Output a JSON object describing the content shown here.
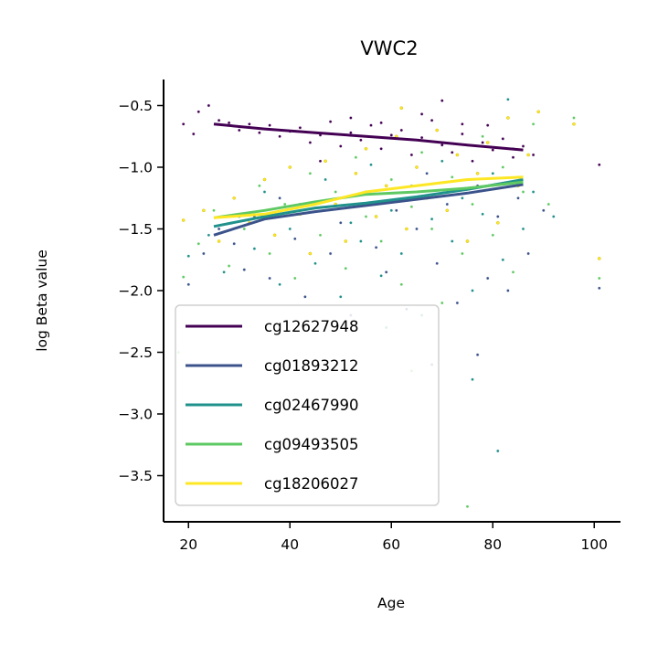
{
  "chart_data": {
    "type": "scatter",
    "title": "VWC2",
    "xlabel": "Age",
    "ylabel": "log Beta value",
    "xlim": [
      15,
      105
    ],
    "ylim": [
      -3.88,
      -0.22
    ],
    "xticks": [
      20,
      40,
      60,
      80,
      100
    ],
    "xtick_labels": [
      "20",
      "40",
      "60",
      "80",
      "100"
    ],
    "yticks": [
      -3.5,
      -3.0,
      -2.5,
      -2.0,
      -1.5,
      -1.0,
      -0.5
    ],
    "ytick_labels": [
      "−3.5",
      "−3.0",
      "−2.5",
      "−2.0",
      "−1.5",
      "−1.0",
      "−0.5"
    ],
    "grid": false,
    "legend_position": "lower-left",
    "series": [
      {
        "name": "cg12627948",
        "color": "#440154",
        "trend": {
          "x": [
            25,
            35,
            45,
            55,
            65,
            75,
            86
          ],
          "y": [
            -0.65,
            -0.69,
            -0.72,
            -0.75,
            -0.78,
            -0.82,
            -0.86
          ]
        },
        "points": [
          [
            19,
            -0.65
          ],
          [
            21,
            -0.73
          ],
          [
            22,
            -0.55
          ],
          [
            24,
            -0.5
          ],
          [
            26,
            -0.62
          ],
          [
            28,
            -0.64
          ],
          [
            30,
            -0.7
          ],
          [
            32,
            -0.65
          ],
          [
            34,
            -0.72
          ],
          [
            36,
            -0.66
          ],
          [
            38,
            -0.75
          ],
          [
            40,
            -0.71
          ],
          [
            42,
            -0.68
          ],
          [
            44,
            -0.8
          ],
          [
            46,
            -0.74
          ],
          [
            48,
            -0.63
          ],
          [
            50,
            -0.83
          ],
          [
            52,
            -0.72
          ],
          [
            54,
            -0.78
          ],
          [
            56,
            -0.66
          ],
          [
            58,
            -0.85
          ],
          [
            60,
            -0.74
          ],
          [
            62,
            -0.7
          ],
          [
            64,
            -0.9
          ],
          [
            66,
            -0.76
          ],
          [
            68,
            -0.62
          ],
          [
            70,
            -0.82
          ],
          [
            72,
            -0.88
          ],
          [
            74,
            -0.73
          ],
          [
            76,
            -0.95
          ],
          [
            78,
            -0.8
          ],
          [
            80,
            -0.86
          ],
          [
            82,
            -0.77
          ],
          [
            84,
            -0.92
          ],
          [
            86,
            -0.83
          ],
          [
            88,
            -0.9
          ],
          [
            101,
            -0.98
          ],
          [
            46,
            -0.95
          ],
          [
            52,
            -0.6
          ],
          [
            58,
            -0.64
          ],
          [
            66,
            -0.57
          ],
          [
            70,
            -0.46
          ],
          [
            74,
            -0.65
          ],
          [
            79,
            -0.66
          ]
        ]
      },
      {
        "name": "cg01893212",
        "color": "#3b528b",
        "trend": {
          "x": [
            25,
            35,
            45,
            55,
            65,
            75,
            86
          ],
          "y": [
            -1.55,
            -1.42,
            -1.36,
            -1.31,
            -1.26,
            -1.21,
            -1.14
          ]
        },
        "points": [
          [
            20,
            -1.95
          ],
          [
            23,
            -1.7
          ],
          [
            26,
            -1.5
          ],
          [
            29,
            -1.62
          ],
          [
            31,
            -1.83
          ],
          [
            33,
            -1.4
          ],
          [
            36,
            -1.9
          ],
          [
            38,
            -1.25
          ],
          [
            41,
            -1.58
          ],
          [
            43,
            -2.05
          ],
          [
            45,
            -1.3
          ],
          [
            48,
            -1.7
          ],
          [
            50,
            -1.45
          ],
          [
            52,
            -2.2
          ],
          [
            55,
            -1.2
          ],
          [
            57,
            -1.65
          ],
          [
            59,
            -1.85
          ],
          [
            61,
            -1.35
          ],
          [
            63,
            -2.15
          ],
          [
            65,
            -1.5
          ],
          [
            67,
            -1.05
          ],
          [
            69,
            -1.78
          ],
          [
            71,
            -1.3
          ],
          [
            73,
            -2.1
          ],
          [
            75,
            -1.6
          ],
          [
            77,
            -1.15
          ],
          [
            79,
            -1.9
          ],
          [
            81,
            -1.4
          ],
          [
            83,
            -2.0
          ],
          [
            85,
            -1.25
          ],
          [
            87,
            -1.7
          ],
          [
            90,
            -1.35
          ],
          [
            101,
            -1.98
          ],
          [
            68,
            -2.6
          ],
          [
            77,
            -2.52
          ]
        ]
      },
      {
        "name": "cg02467990",
        "color": "#21918c",
        "trend": {
          "x": [
            25,
            35,
            45,
            55,
            65,
            75,
            86
          ],
          "y": [
            -1.48,
            -1.4,
            -1.33,
            -1.29,
            -1.24,
            -1.18,
            -1.1
          ]
        },
        "points": [
          [
            20,
            -1.72
          ],
          [
            24,
            -1.55
          ],
          [
            27,
            -1.85
          ],
          [
            30,
            -1.4
          ],
          [
            33,
            -1.66
          ],
          [
            35,
            -1.2
          ],
          [
            38,
            -1.95
          ],
          [
            40,
            -1.5
          ],
          [
            42,
            -1.3
          ],
          [
            45,
            -1.78
          ],
          [
            47,
            -1.1
          ],
          [
            50,
            -2.05
          ],
          [
            52,
            -1.45
          ],
          [
            54,
            -1.6
          ],
          [
            56,
            -0.98
          ],
          [
            58,
            -1.88
          ],
          [
            60,
            -1.35
          ],
          [
            62,
            -1.7
          ],
          [
            64,
            -1.15
          ],
          [
            66,
            -2.2
          ],
          [
            68,
            -1.42
          ],
          [
            70,
            -0.95
          ],
          [
            72,
            -1.6
          ],
          [
            74,
            -1.25
          ],
          [
            76,
            -2.0
          ],
          [
            78,
            -1.38
          ],
          [
            80,
            -1.05
          ],
          [
            82,
            -1.75
          ],
          [
            84,
            -0.85
          ],
          [
            86,
            -1.5
          ],
          [
            88,
            -1.2
          ],
          [
            92,
            -1.4
          ],
          [
            81,
            -3.3
          ],
          [
            76,
            -2.72
          ],
          [
            83,
            -0.45
          ],
          [
            59,
            -2.3
          ]
        ]
      },
      {
        "name": "cg09493505",
        "color": "#5ec962",
        "trend": {
          "x": [
            25,
            35,
            45,
            55,
            65,
            75,
            86
          ],
          "y": [
            -1.41,
            -1.35,
            -1.28,
            -1.22,
            -1.2,
            -1.17,
            -1.12
          ]
        },
        "points": [
          [
            19,
            -1.89
          ],
          [
            22,
            -1.62
          ],
          [
            25,
            -1.35
          ],
          [
            28,
            -1.8
          ],
          [
            31,
            -1.5
          ],
          [
            34,
            -1.15
          ],
          [
            36,
            -1.7
          ],
          [
            39,
            -1.3
          ],
          [
            41,
            -1.9
          ],
          [
            44,
            -1.05
          ],
          [
            46,
            -1.55
          ],
          [
            49,
            -1.2
          ],
          [
            51,
            -1.82
          ],
          [
            53,
            -0.92
          ],
          [
            55,
            -1.4
          ],
          [
            58,
            -1.6
          ],
          [
            60,
            -1.1
          ],
          [
            62,
            -1.95
          ],
          [
            64,
            -1.32
          ],
          [
            66,
            -0.88
          ],
          [
            68,
            -1.5
          ],
          [
            70,
            -2.1
          ],
          [
            72,
            -1.08
          ],
          [
            74,
            -1.7
          ],
          [
            76,
            -1.3
          ],
          [
            78,
            -0.75
          ],
          [
            80,
            -1.55
          ],
          [
            82,
            -1.0
          ],
          [
            84,
            -1.85
          ],
          [
            86,
            -1.2
          ],
          [
            88,
            -0.65
          ],
          [
            91,
            -1.3
          ],
          [
            96,
            -0.6
          ],
          [
            101,
            -1.9
          ],
          [
            75,
            -3.75
          ],
          [
            64,
            -2.65
          ],
          [
            18,
            -2.5
          ]
        ]
      },
      {
        "name": "cg18206027",
        "color": "#fde725",
        "trend": {
          "x": [
            25,
            35,
            45,
            55,
            65,
            75,
            86
          ],
          "y": [
            -1.41,
            -1.38,
            -1.3,
            -1.2,
            -1.15,
            -1.1,
            -1.08
          ]
        },
        "points": [
          [
            19,
            -1.43
          ],
          [
            23,
            -1.35
          ],
          [
            26,
            -1.6
          ],
          [
            29,
            -1.25
          ],
          [
            32,
            -1.45
          ],
          [
            35,
            -1.1
          ],
          [
            37,
            -1.55
          ],
          [
            40,
            -1.0
          ],
          [
            42,
            -1.38
          ],
          [
            44,
            -1.7
          ],
          [
            47,
            -0.95
          ],
          [
            49,
            -1.3
          ],
          [
            51,
            -1.6
          ],
          [
            53,
            -1.05
          ],
          [
            55,
            -0.85
          ],
          [
            57,
            -1.4
          ],
          [
            59,
            -1.15
          ],
          [
            61,
            -0.75
          ],
          [
            63,
            -1.5
          ],
          [
            65,
            -1.0
          ],
          [
            67,
            -1.25
          ],
          [
            69,
            -0.7
          ],
          [
            71,
            -1.35
          ],
          [
            73,
            -0.9
          ],
          [
            75,
            -1.6
          ],
          [
            77,
            -1.05
          ],
          [
            79,
            -0.8
          ],
          [
            81,
            -1.45
          ],
          [
            83,
            -0.6
          ],
          [
            85,
            -1.15
          ],
          [
            87,
            -0.9
          ],
          [
            89,
            -0.55
          ],
          [
            96,
            -0.65
          ],
          [
            101,
            -1.74
          ],
          [
            62,
            -0.52
          ]
        ]
      }
    ]
  }
}
